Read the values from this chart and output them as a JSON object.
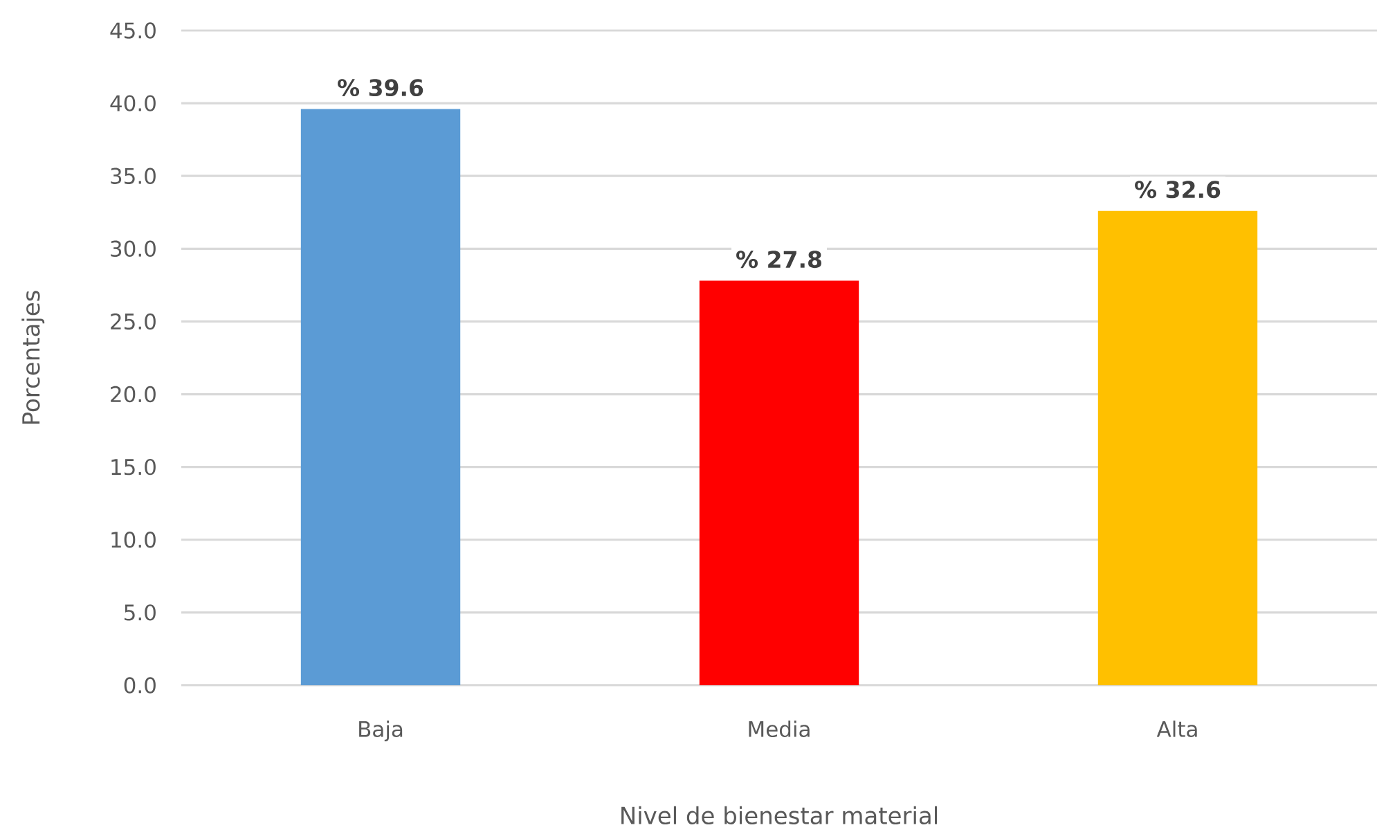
{
  "chart_data": {
    "type": "bar",
    "xlabel": "Nivel de bienestar material",
    "ylabel": "Porcentajes",
    "categories": [
      "Baja",
      "Media",
      "Alta"
    ],
    "values": [
      39.6,
      27.8,
      32.6
    ],
    "colors": [
      "#5b9bd5",
      "#ff0000",
      "#ffc000"
    ],
    "value_labels": [
      "% 39.6",
      "% 27.8",
      "% 32.6"
    ],
    "ylim": [
      0,
      45
    ],
    "yticks": [
      {
        "value": 0,
        "label": "0.0"
      },
      {
        "value": 5,
        "label": "5.0"
      },
      {
        "value": 10,
        "label": "10.0"
      },
      {
        "value": 15,
        "label": "15.0"
      },
      {
        "value": 20,
        "label": "20.0"
      },
      {
        "value": 25,
        "label": "25.0"
      },
      {
        "value": 30,
        "label": "30.0"
      },
      {
        "value": 35,
        "label": "35.0"
      },
      {
        "value": 40,
        "label": "40.0"
      },
      {
        "value": 45,
        "label": "45.0"
      }
    ],
    "grid": "y"
  }
}
